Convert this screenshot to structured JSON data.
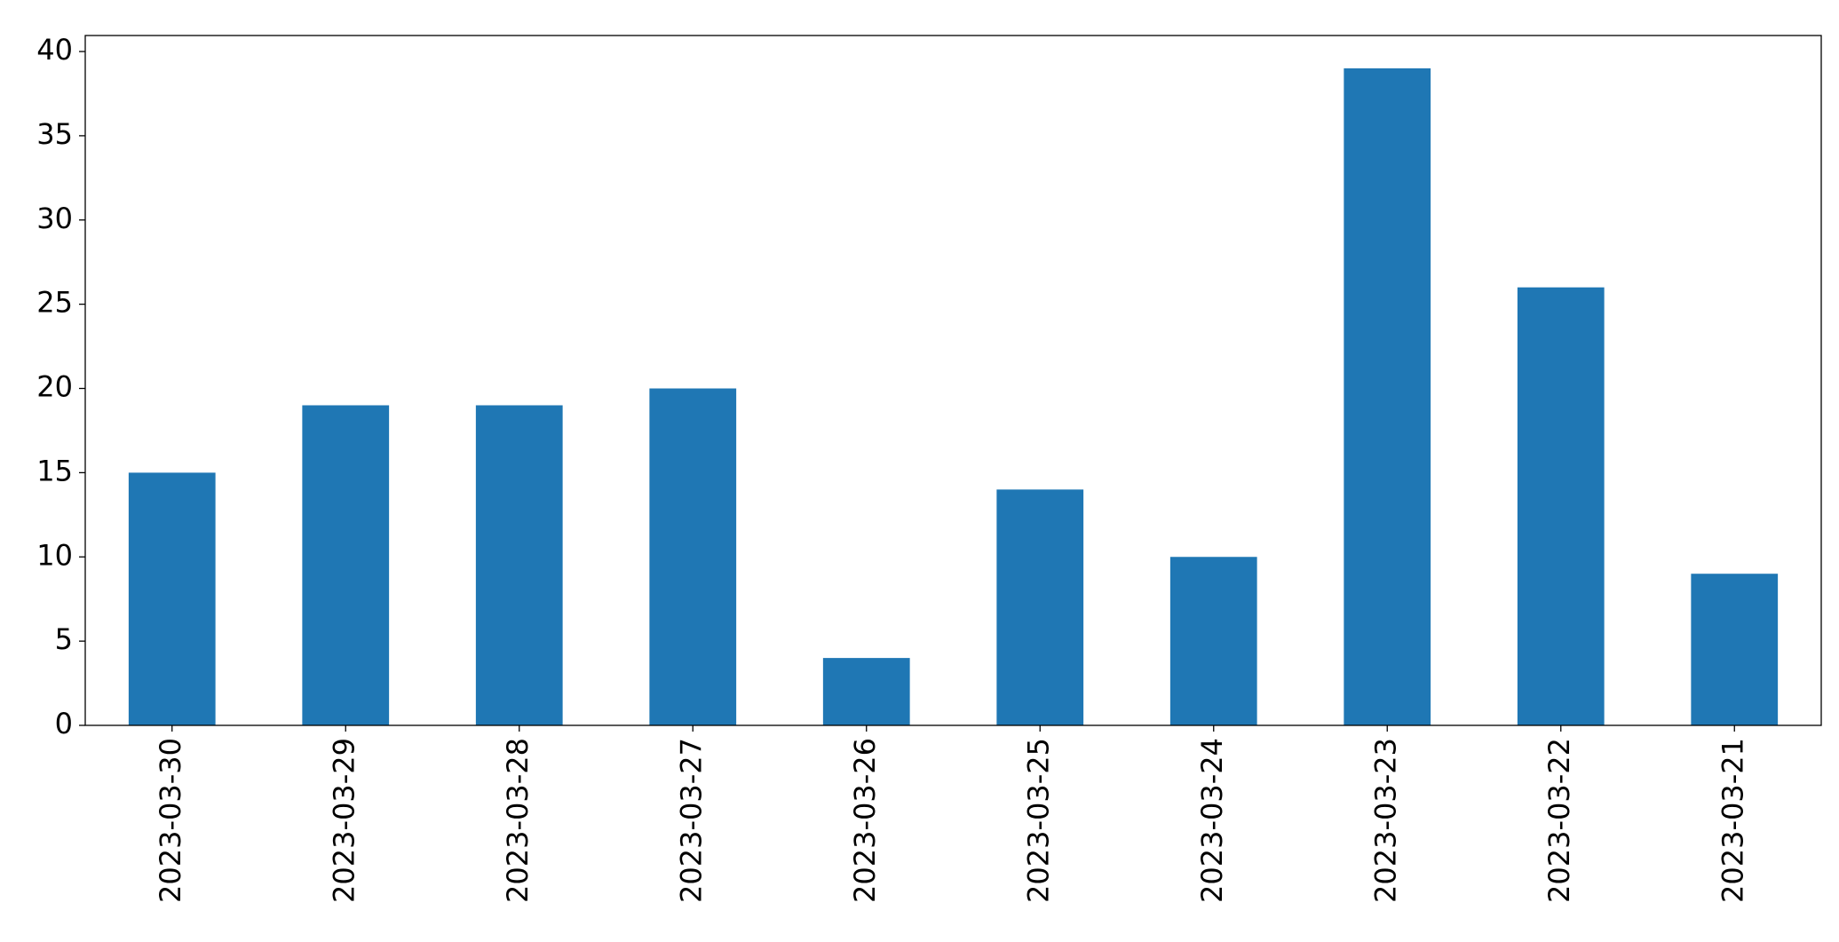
{
  "chart_data": {
    "type": "bar",
    "categories": [
      "2023-03-30",
      "2023-03-29",
      "2023-03-28",
      "2023-03-27",
      "2023-03-26",
      "2023-03-25",
      "2023-03-24",
      "2023-03-23",
      "2023-03-22",
      "2023-03-21"
    ],
    "values": [
      15,
      19,
      19,
      20,
      4,
      14,
      10,
      39,
      26,
      9
    ],
    "color": "#1f77b4",
    "ylim": [
      0,
      40.95
    ],
    "yticks": [
      0,
      5,
      10,
      15,
      20,
      25,
      30,
      35,
      40
    ],
    "grid": false
  }
}
